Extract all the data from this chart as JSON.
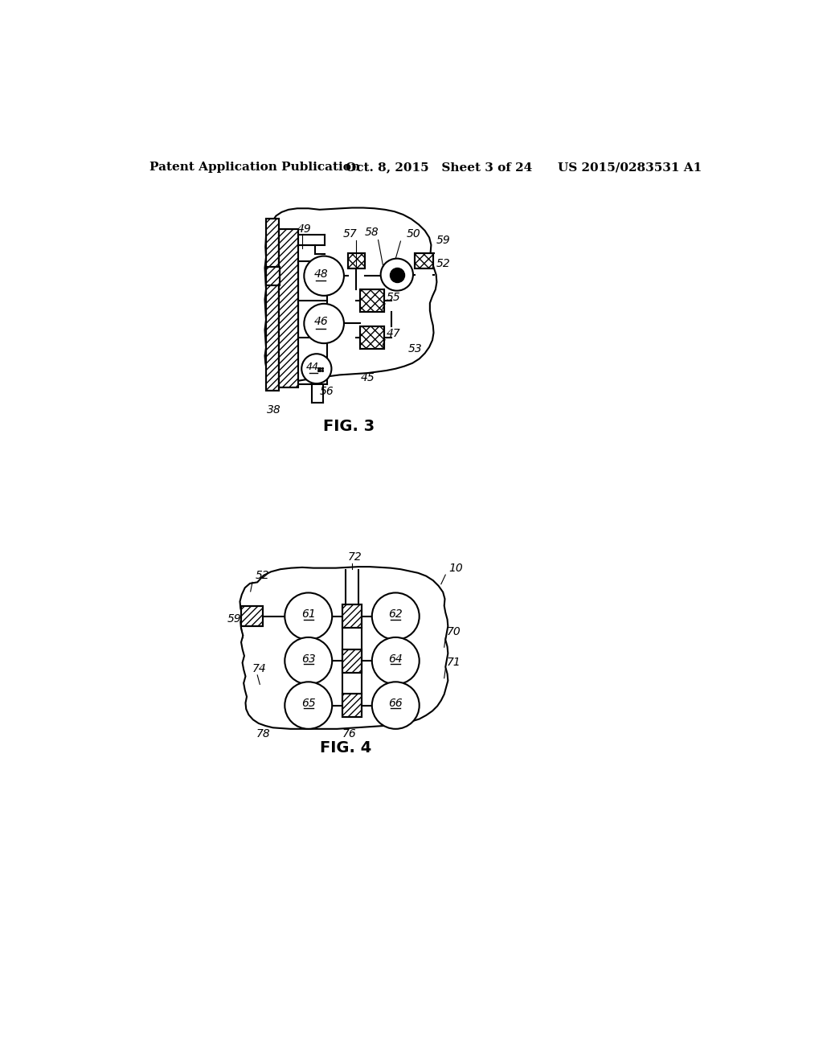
{
  "header_left": "Patent Application Publication",
  "header_mid": "Oct. 8, 2015   Sheet 3 of 24",
  "header_right": "US 2015/0283531 A1",
  "fig3_label": "FIG. 3",
  "fig4_label": "FIG. 4",
  "background_color": "#ffffff",
  "line_color": "#000000"
}
